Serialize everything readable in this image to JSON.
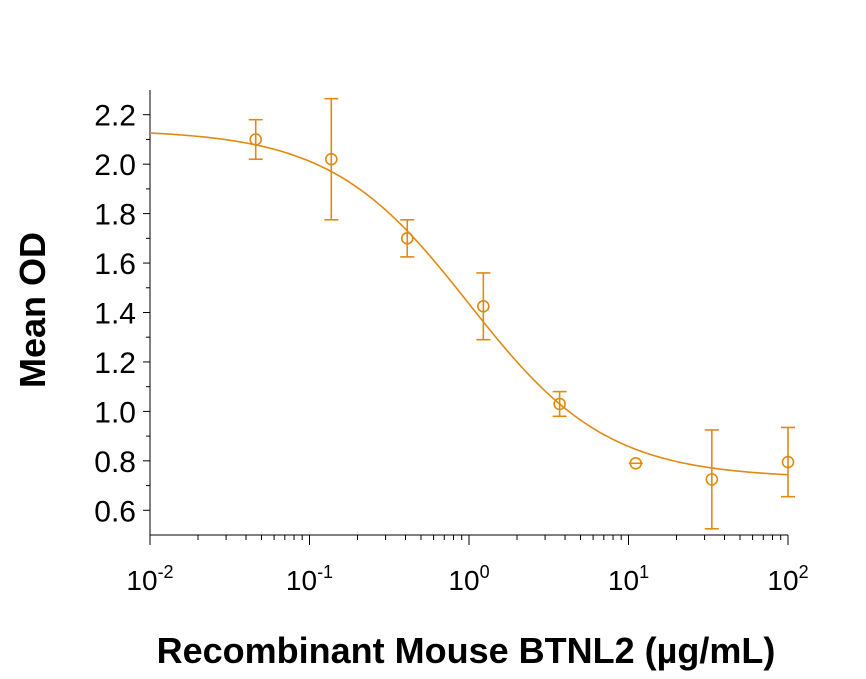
{
  "chart_data": {
    "type": "scatter",
    "xscale": "log",
    "xlim": [
      0.01,
      100
    ],
    "ylim": [
      0.5,
      2.3
    ],
    "xlabel": "Recombinant Mouse BTNL2 (µg/mL)",
    "ylabel": "Mean OD",
    "ytick_labels": [
      "0.6",
      "0.8",
      "1.0",
      "1.2",
      "1.4",
      "1.6",
      "1.8",
      "2.0",
      "2.2"
    ],
    "xtick_labels": [
      {
        "base": "10",
        "exp": "-2"
      },
      {
        "base": "10",
        "exp": "-1"
      },
      {
        "base": "10",
        "exp": "0"
      },
      {
        "base": "10",
        "exp": "1"
      },
      {
        "base": "10",
        "exp": "2"
      }
    ],
    "color": "#E08A12",
    "series": [
      {
        "points": [
          {
            "x": 0.046,
            "y": 2.1,
            "err": 0.08
          },
          {
            "x": 0.137,
            "y": 2.02,
            "err": 0.245
          },
          {
            "x": 0.41,
            "y": 1.7,
            "err": 0.075
          },
          {
            "x": 1.23,
            "y": 1.425,
            "err": 0.135
          },
          {
            "x": 3.7,
            "y": 1.03,
            "err": 0.05
          },
          {
            "x": 11.1,
            "y": 0.79,
            "err": 0.0
          },
          {
            "x": 33.3,
            "y": 0.725,
            "err": 0.2
          },
          {
            "x": 100,
            "y": 0.795,
            "err": 0.14
          }
        ],
        "fit": {
          "model": "4PL",
          "top": 2.14,
          "bottom": 0.73,
          "ec50": 1.0,
          "hill": 1.0
        }
      }
    ],
    "grid": false,
    "legend": "none"
  }
}
